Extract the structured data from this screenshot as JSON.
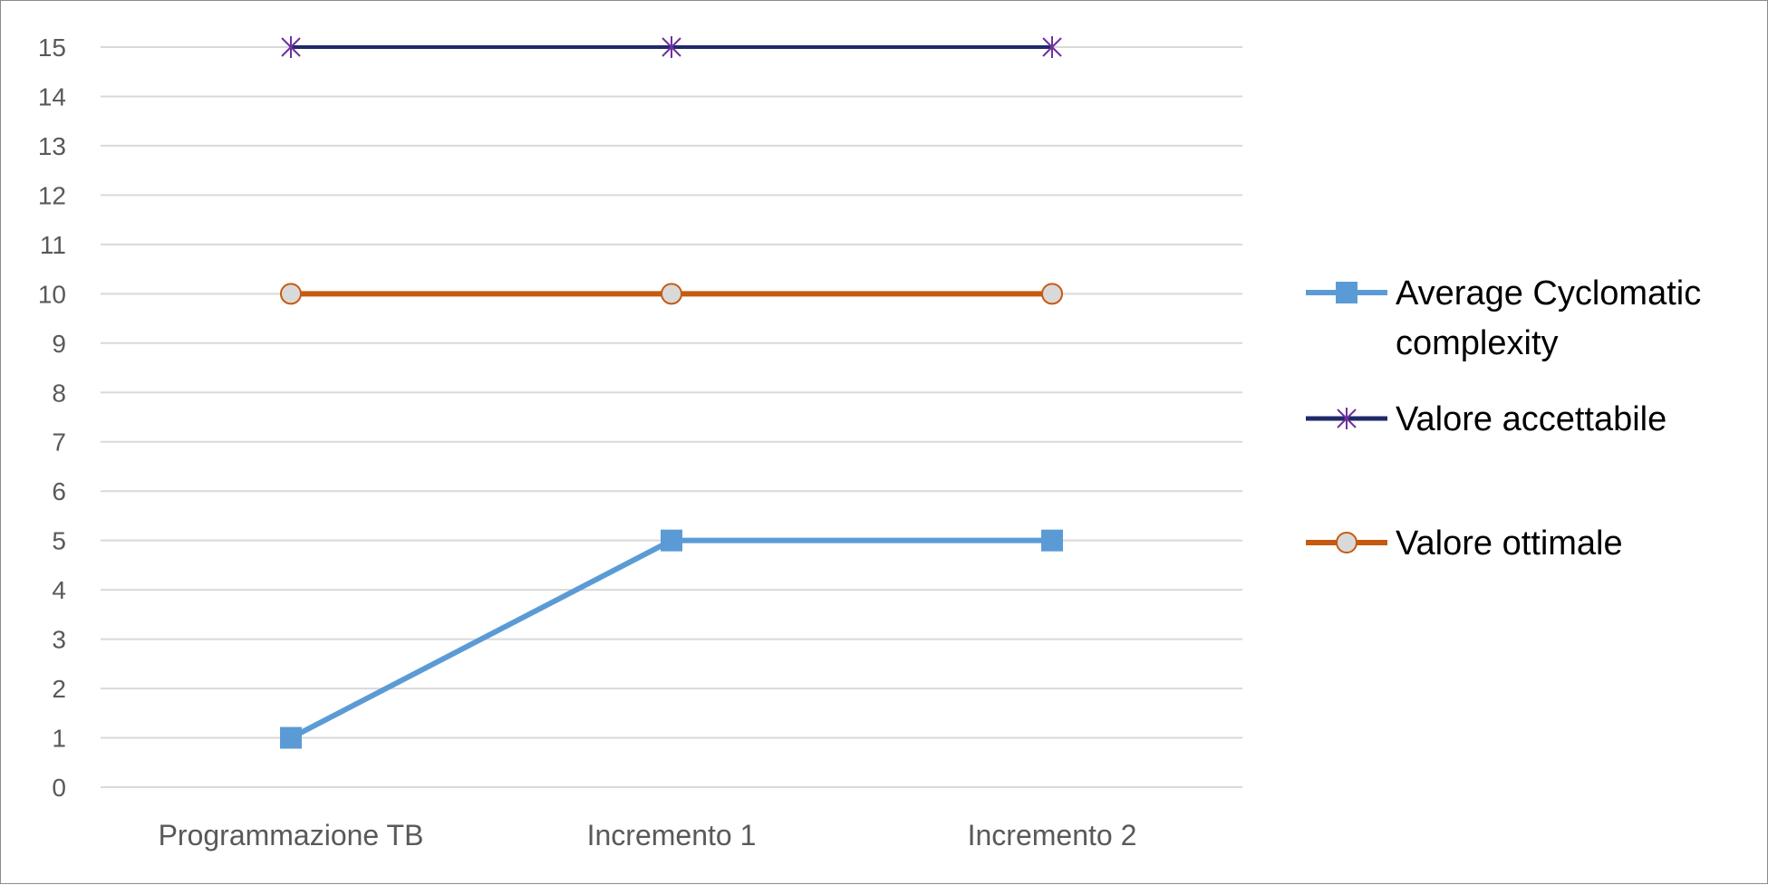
{
  "chart_data": {
    "type": "line",
    "title": "",
    "xlabel": "",
    "ylabel": "",
    "categories": [
      "Programmazione TB",
      "Incremento 1",
      "Incremento 2"
    ],
    "ylim": [
      0,
      15
    ],
    "yticks": [
      0,
      1,
      2,
      3,
      4,
      5,
      6,
      7,
      8,
      9,
      10,
      11,
      12,
      13,
      14,
      15
    ],
    "grid": true,
    "legend_position": "right",
    "series": [
      {
        "name": "Average Cyclomatic complexity",
        "legend_lines": [
          "Average Cyclomatic",
          "complexity"
        ],
        "values": [
          1,
          5,
          5
        ],
        "color": "#5b9bd5",
        "marker": "square"
      },
      {
        "name": "Valore accettabile",
        "legend_lines": [
          "Valore accettabile"
        ],
        "values": [
          15,
          15,
          15
        ],
        "color": "#1f2a6b",
        "marker_color": "#7030a0",
        "marker": "asterisk"
      },
      {
        "name": "Valore ottimale",
        "legend_lines": [
          "Valore ottimale"
        ],
        "values": [
          10,
          10,
          10
        ],
        "color": "#c55a11",
        "marker_fill": "#d9d9d9",
        "marker": "circle"
      }
    ]
  }
}
